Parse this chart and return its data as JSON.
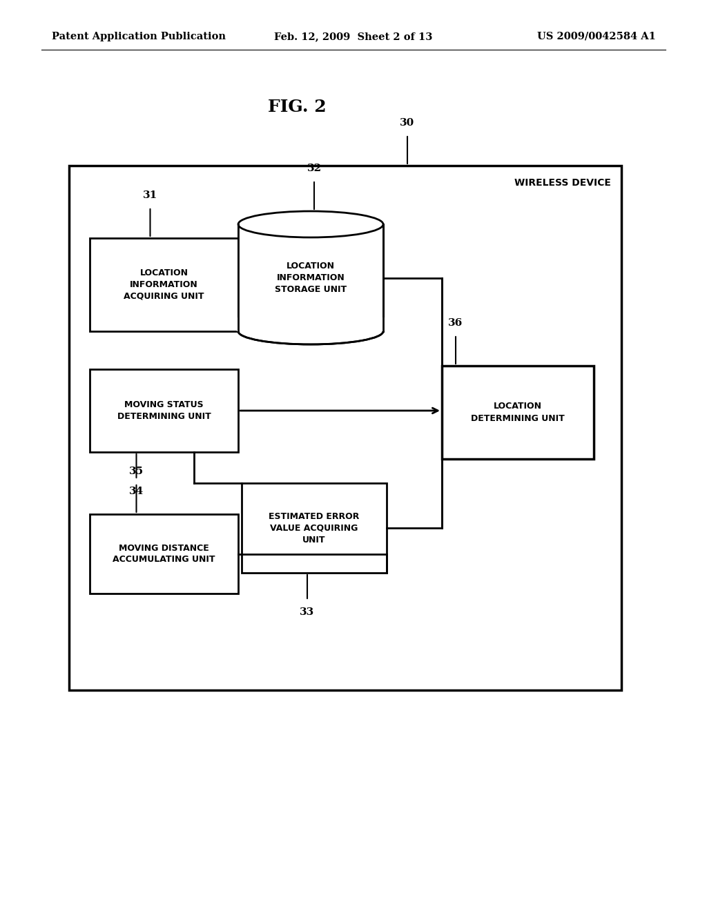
{
  "bg_color": "#ffffff",
  "header_left": "Patent Application Publication",
  "header_mid": "Feb. 12, 2009  Sheet 2 of 13",
  "header_right": "US 2009/0042584 A1",
  "fig_label": "FIG. 2",
  "outer_box_label": "WIRELESS DEVICE",
  "num30": "30",
  "num31": "31",
  "num32": "32",
  "num33": "33",
  "num34": "34",
  "num35": "35",
  "num36": "36",
  "label31": "LOCATION\nINFORMATION\nACQUIRING UNIT",
  "label32": "LOCATION\nINFORMATION\nSTORAGE UNIT",
  "label33": "ESTIMATED ERROR\nVALUE ACQUIRING\nUNIT",
  "label34": "MOVING STATUS\nDETERMINING UNIT",
  "label35": "MOVING DISTANCE\nACCUMULATING UNIT",
  "label36": "LOCATION\nDETERMINING UNIT"
}
